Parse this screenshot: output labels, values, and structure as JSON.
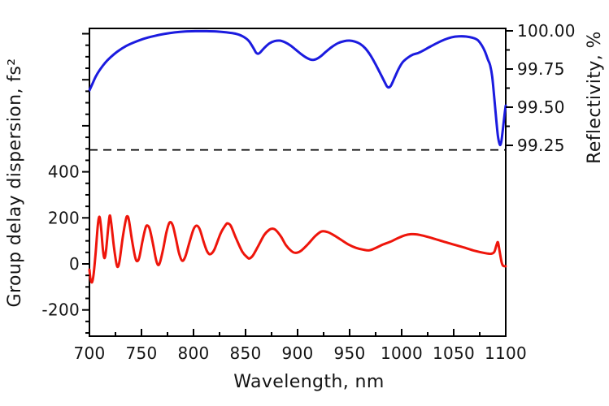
{
  "chart_data": {
    "type": "line",
    "title": "",
    "xlabel": "Wavelength, nm",
    "ylabel_left": "Group delay dispersion, fs²",
    "ylabel_right": "Reflectivity, %",
    "grid": false,
    "legend": "none",
    "x_axis": {
      "min": 700,
      "max": 1100,
      "major_tick_values": [
        700,
        750,
        800,
        850,
        900,
        950,
        1000,
        1050,
        1100
      ],
      "major_tick_labels": [
        "700",
        "750",
        "800",
        "850",
        "900",
        "950",
        "1000",
        "1050",
        "1100"
      ],
      "minor_tick_values": [
        725,
        775,
        825,
        875,
        925,
        975,
        1025,
        1075
      ]
    },
    "y_axis_left": {
      "min": -314,
      "max": 1023,
      "major_tick_values": [
        -200,
        0,
        200,
        400,
        600,
        800,
        1000
      ],
      "labeled_tick_values": [
        400,
        200,
        0,
        -200
      ],
      "labeled_tick_labels": [
        "400",
        "200",
        "0",
        "-200"
      ],
      "minor_tick_values": [
        -300,
        -250,
        -150,
        -100,
        -50,
        50,
        100,
        150,
        250,
        300,
        350,
        450,
        500,
        550,
        650,
        700,
        750,
        850,
        900,
        950
      ]
    },
    "y_axis_right": {
      "min": 98.0,
      "max": 100.016,
      "major_tick_values": [
        99.25,
        99.5,
        99.75,
        100.0
      ],
      "labeled_tick_values": [
        100.0,
        99.75,
        99.5,
        99.25
      ],
      "labeled_tick_labels": [
        "100.00",
        "99.75",
        "99.50",
        "99.25"
      ],
      "minor_tick_values": [
        99.375,
        99.625,
        99.875
      ]
    },
    "reference_line": {
      "axis": "right",
      "value": 99.22,
      "style": "dashed",
      "color": "#000000"
    },
    "series": [
      {
        "name": "Reflectivity",
        "axis": "right",
        "color": "#1b1bdf",
        "points": [
          [
            700,
            99.61
          ],
          [
            703,
            99.655
          ],
          [
            706,
            99.7
          ],
          [
            710,
            99.745
          ],
          [
            715,
            99.79
          ],
          [
            720,
            99.825
          ],
          [
            727,
            99.865
          ],
          [
            735,
            99.9
          ],
          [
            743,
            99.925
          ],
          [
            752,
            99.948
          ],
          [
            762,
            99.966
          ],
          [
            772,
            99.98
          ],
          [
            782,
            99.99
          ],
          [
            792,
            99.996
          ],
          [
            802,
            99.998
          ],
          [
            812,
            99.998
          ],
          [
            822,
            99.996
          ],
          [
            832,
            99.99
          ],
          [
            840,
            99.982
          ],
          [
            847,
            99.965
          ],
          [
            853,
            99.935
          ],
          [
            858,
            99.882
          ],
          [
            860,
            99.858
          ],
          [
            862,
            99.85
          ],
          [
            864,
            99.858
          ],
          [
            868,
            99.888
          ],
          [
            873,
            99.918
          ],
          [
            878,
            99.933
          ],
          [
            883,
            99.936
          ],
          [
            888,
            99.925
          ],
          [
            893,
            99.905
          ],
          [
            898,
            99.878
          ],
          [
            903,
            99.85
          ],
          [
            908,
            99.826
          ],
          [
            912,
            99.813
          ],
          [
            915,
            99.81
          ],
          [
            918,
            99.815
          ],
          [
            922,
            99.832
          ],
          [
            927,
            99.862
          ],
          [
            933,
            99.895
          ],
          [
            939,
            99.92
          ],
          [
            945,
            99.933
          ],
          [
            950,
            99.936
          ],
          [
            955,
            99.93
          ],
          [
            960,
            99.915
          ],
          [
            965,
            99.886
          ],
          [
            970,
            99.84
          ],
          [
            975,
            99.78
          ],
          [
            980,
            99.714
          ],
          [
            984,
            99.66
          ],
          [
            986,
            99.635
          ],
          [
            988,
            99.63
          ],
          [
            990,
            99.645
          ],
          [
            993,
            99.69
          ],
          [
            997,
            99.75
          ],
          [
            1001,
            99.795
          ],
          [
            1006,
            99.825
          ],
          [
            1011,
            99.845
          ],
          [
            1016,
            99.855
          ],
          [
            1021,
            99.872
          ],
          [
            1027,
            99.895
          ],
          [
            1034,
            99.92
          ],
          [
            1041,
            99.942
          ],
          [
            1048,
            99.958
          ],
          [
            1055,
            99.964
          ],
          [
            1062,
            99.963
          ],
          [
            1068,
            99.955
          ],
          [
            1073,
            99.94
          ],
          [
            1077,
            99.905
          ],
          [
            1080,
            99.865
          ],
          [
            1083,
            99.81
          ],
          [
            1085,
            99.775
          ],
          [
            1087,
            99.7
          ],
          [
            1089,
            99.56
          ],
          [
            1091,
            99.41
          ],
          [
            1092.5,
            99.31
          ],
          [
            1094,
            99.26
          ],
          [
            1095,
            99.255
          ],
          [
            1096,
            99.285
          ],
          [
            1097.5,
            99.37
          ],
          [
            1099,
            99.46
          ],
          [
            1100,
            99.51
          ]
        ]
      },
      {
        "name": "Group delay dispersion",
        "axis": "left",
        "color": "#ee150b",
        "points": [
          [
            700,
            -25
          ],
          [
            701,
            -65
          ],
          [
            702.5,
            -80
          ],
          [
            704,
            -45
          ],
          [
            706,
            50
          ],
          [
            708,
            165
          ],
          [
            709.5,
            205
          ],
          [
            711,
            165
          ],
          [
            713,
            60
          ],
          [
            714.5,
            25
          ],
          [
            716,
            60
          ],
          [
            718,
            155
          ],
          [
            719.5,
            210
          ],
          [
            721,
            175
          ],
          [
            723.5,
            75
          ],
          [
            726,
            0
          ],
          [
            727.5,
            -12
          ],
          [
            729,
            15
          ],
          [
            732,
            115
          ],
          [
            735,
            192
          ],
          [
            736.5,
            207
          ],
          [
            738,
            188
          ],
          [
            741,
            100
          ],
          [
            744,
            28
          ],
          [
            746,
            12
          ],
          [
            748,
            30
          ],
          [
            751,
            100
          ],
          [
            754,
            158
          ],
          [
            756,
            166
          ],
          [
            758,
            150
          ],
          [
            761,
            88
          ],
          [
            764,
            18
          ],
          [
            766,
            -5
          ],
          [
            768,
            10
          ],
          [
            771,
            68
          ],
          [
            774,
            138
          ],
          [
            777,
            180
          ],
          [
            780,
            168
          ],
          [
            783,
            112
          ],
          [
            786,
            48
          ],
          [
            789,
            14
          ],
          [
            792,
            30
          ],
          [
            796,
            92
          ],
          [
            800,
            150
          ],
          [
            803,
            166
          ],
          [
            806,
            150
          ],
          [
            810,
            92
          ],
          [
            813,
            55
          ],
          [
            816,
            42
          ],
          [
            820,
            62
          ],
          [
            826,
            132
          ],
          [
            831,
            170
          ],
          [
            833,
            176
          ],
          [
            836,
            164
          ],
          [
            841,
            110
          ],
          [
            847,
            52
          ],
          [
            852,
            27
          ],
          [
            854,
            24
          ],
          [
            857,
            36
          ],
          [
            862,
            76
          ],
          [
            868,
            126
          ],
          [
            873,
            149
          ],
          [
            876,
            153
          ],
          [
            879,
            147
          ],
          [
            884,
            119
          ],
          [
            889,
            80
          ],
          [
            894,
            56
          ],
          [
            898,
            48
          ],
          [
            903,
            56
          ],
          [
            910,
            86
          ],
          [
            917,
            121
          ],
          [
            923,
            141
          ],
          [
            929,
            138
          ],
          [
            935,
            124
          ],
          [
            942,
            104
          ],
          [
            949,
            84
          ],
          [
            956,
            70
          ],
          [
            963,
            62
          ],
          [
            969,
            59
          ],
          [
            975,
            69
          ],
          [
            982,
            84
          ],
          [
            989,
            96
          ],
          [
            996,
            111
          ],
          [
            1003,
            124
          ],
          [
            1009,
            129
          ],
          [
            1015,
            128
          ],
          [
            1022,
            121
          ],
          [
            1030,
            111
          ],
          [
            1040,
            97
          ],
          [
            1050,
            84
          ],
          [
            1060,
            71
          ],
          [
            1070,
            57
          ],
          [
            1080,
            47
          ],
          [
            1086,
            44
          ],
          [
            1089,
            52
          ],
          [
            1091,
            80
          ],
          [
            1092.5,
            94
          ],
          [
            1094,
            58
          ],
          [
            1096,
            8
          ],
          [
            1097.5,
            -8
          ],
          [
            1100,
            -10
          ]
        ]
      }
    ],
    "style": {
      "frame_color": "#000000",
      "background": "#ffffff",
      "curve_width": 3,
      "axis_width": 2
    }
  }
}
